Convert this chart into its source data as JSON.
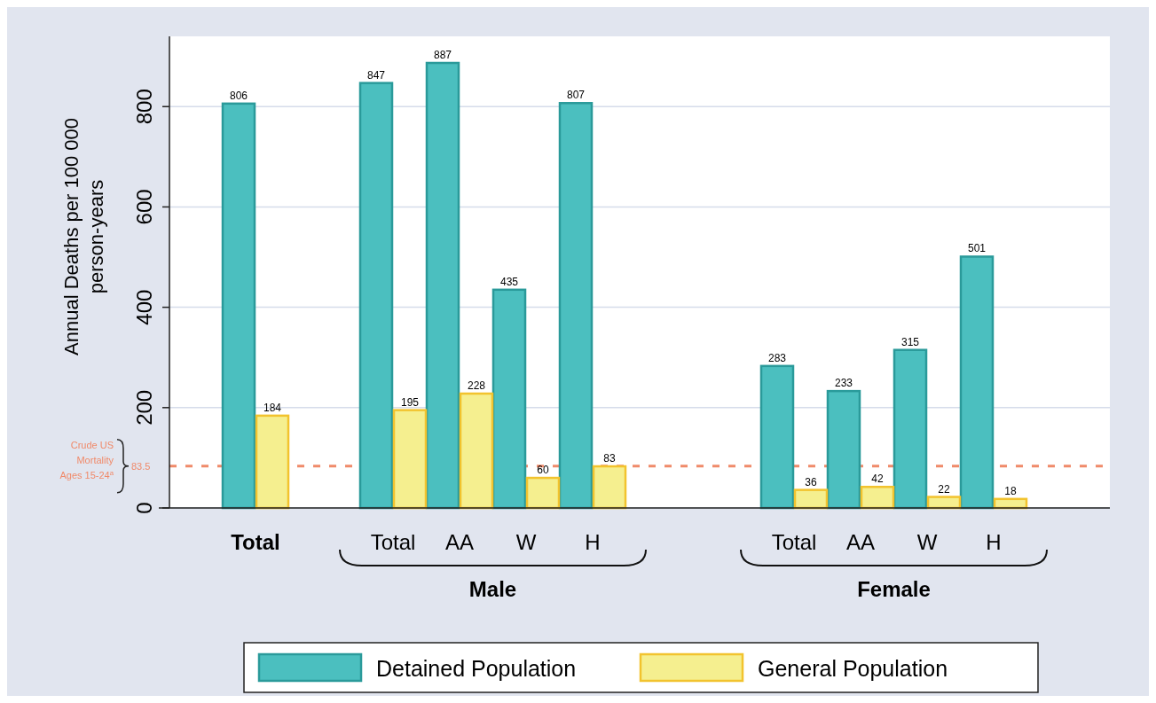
{
  "chart_data": {
    "type": "bar",
    "ylabel": "Annual Deaths per 100 000 person-years",
    "categories": [
      "Total",
      "Total",
      "AA",
      "W",
      "H",
      "Total",
      "AA",
      "W",
      "H"
    ],
    "series": [
      {
        "name": "Detained Population",
        "color": "#4bbfbf",
        "values": [
          806,
          847,
          887,
          435,
          807,
          283,
          233,
          315,
          501
        ]
      },
      {
        "name": "General Population",
        "color": "#f5ef8f",
        "values": [
          184,
          195,
          228,
          60,
          83,
          36,
          42,
          22,
          18
        ]
      }
    ],
    "ylim": [
      0,
      940
    ],
    "yticks": [
      0,
      200,
      400,
      600,
      800
    ],
    "grid": "y",
    "data_labels": true,
    "legend": "bottom",
    "ref_lines": [
      {
        "axis": "y",
        "value": 83.5,
        "label": "Crude US Mortality Ages 15-24$^{a}$",
        "color": "#f08a6a",
        "line_style": "dashed"
      }
    ],
    "annotations": [
      "Male",
      "Female",
      "83.5"
    ]
  }
}
